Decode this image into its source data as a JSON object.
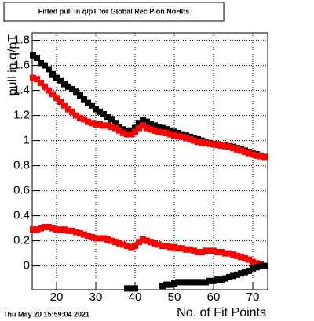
{
  "chart_data": {
    "type": "scatter",
    "title": "Fitted pull in q/pT for Global Rec Pion NoHits",
    "xlabel": "No. of Fit Points",
    "ylabel": "pull in q/pT",
    "timestamp": "Thu May 20 15:59:04 2021",
    "x": [
      14,
      15,
      16,
      17,
      18,
      19,
      20,
      21,
      22,
      23,
      24,
      25,
      26,
      27,
      28,
      29,
      30,
      31,
      32,
      33,
      34,
      35,
      36,
      37,
      38,
      39,
      40,
      41,
      42,
      43,
      44,
      45,
      46,
      47,
      48,
      49,
      50,
      51,
      52,
      53,
      54,
      55,
      56,
      57,
      58,
      59,
      60,
      61,
      62,
      63,
      64,
      65,
      66,
      67,
      68,
      69,
      70,
      71,
      72,
      73
    ],
    "series": [
      {
        "color": "#000000",
        "values": [
          1.68,
          1.66,
          1.62,
          1.6,
          1.57,
          1.53,
          1.5,
          1.48,
          1.45,
          1.43,
          1.41,
          1.39,
          1.36,
          1.33,
          1.3,
          1.28,
          1.25,
          1.23,
          1.21,
          1.19,
          1.17,
          1.14,
          1.11,
          1.09,
          1.08,
          1.08,
          1.1,
          1.14,
          1.16,
          1.15,
          1.13,
          1.12,
          1.11,
          1.1,
          1.09,
          1.08,
          1.07,
          1.06,
          1.05,
          1.04,
          1.03,
          1.02,
          1.01,
          1.0,
          0.99,
          0.98,
          0.975,
          0.97,
          0.965,
          0.96,
          0.955,
          0.95,
          0.94,
          0.93,
          0.92,
          0.91,
          0.9,
          0.89,
          0.88,
          0.87
        ]
      },
      {
        "color": "#ff0000",
        "values": [
          1.5,
          1.49,
          1.46,
          1.43,
          1.4,
          1.37,
          1.34,
          1.31,
          1.28,
          1.25,
          1.23,
          1.2,
          1.18,
          1.17,
          1.15,
          1.14,
          1.13,
          1.13,
          1.12,
          1.12,
          1.11,
          1.1,
          1.08,
          1.06,
          1.05,
          1.05,
          1.07,
          1.1,
          1.12,
          1.1,
          1.09,
          1.08,
          1.07,
          1.065,
          1.06,
          1.05,
          1.04,
          1.035,
          1.03,
          1.02,
          1.01,
          1.0,
          0.99,
          0.985,
          0.98,
          0.975,
          0.97,
          0.965,
          0.96,
          0.955,
          0.95,
          0.94,
          0.93,
          0.92,
          0.91,
          0.9,
          0.89,
          0.88,
          0.875,
          0.87
        ]
      },
      {
        "color": "#ff0000",
        "values": [
          0.29,
          0.29,
          0.3,
          0.31,
          0.31,
          0.3,
          0.29,
          0.29,
          0.29,
          0.28,
          0.28,
          0.27,
          0.26,
          0.25,
          0.24,
          0.23,
          0.22,
          0.22,
          0.22,
          0.21,
          0.2,
          0.19,
          0.18,
          0.17,
          0.16,
          0.15,
          0.16,
          0.19,
          0.21,
          0.2,
          0.19,
          0.18,
          0.17,
          0.16,
          0.16,
          0.15,
          0.15,
          0.14,
          0.14,
          0.13,
          0.13,
          0.12,
          0.11,
          0.11,
          0.12,
          0.12,
          0.12,
          0.11,
          0.11,
          0.1,
          0.1,
          0.09,
          0.08,
          0.07,
          0.06,
          0.05,
          0.03,
          0.02,
          0.01,
          0.0
        ]
      },
      {
        "color": "#000000",
        "values": [
          null,
          null,
          null,
          null,
          null,
          null,
          null,
          null,
          null,
          null,
          null,
          null,
          null,
          null,
          null,
          null,
          null,
          null,
          null,
          null,
          null,
          null,
          null,
          null,
          -0.18,
          -0.18,
          -0.18,
          null,
          null,
          null,
          null,
          null,
          null,
          -0.16,
          -0.15,
          -0.15,
          -0.14,
          -0.13,
          -0.13,
          -0.13,
          -0.13,
          -0.13,
          -0.13,
          -0.13,
          -0.13,
          -0.12,
          -0.12,
          -0.11,
          -0.11,
          -0.1,
          -0.09,
          -0.08,
          -0.07,
          -0.06,
          -0.05,
          -0.04,
          -0.02,
          -0.01,
          0.0,
          0.0
        ]
      }
    ],
    "xlim": [
      13.8,
      73.8
    ],
    "ylim": [
      -0.19,
      1.86
    ],
    "xticks": [
      20,
      30,
      40,
      50,
      60,
      70
    ],
    "yticks": [
      0,
      0.2,
      0.4,
      0.6,
      0.8,
      1,
      1.2,
      1.4,
      1.6,
      1.8
    ],
    "grid": true
  }
}
